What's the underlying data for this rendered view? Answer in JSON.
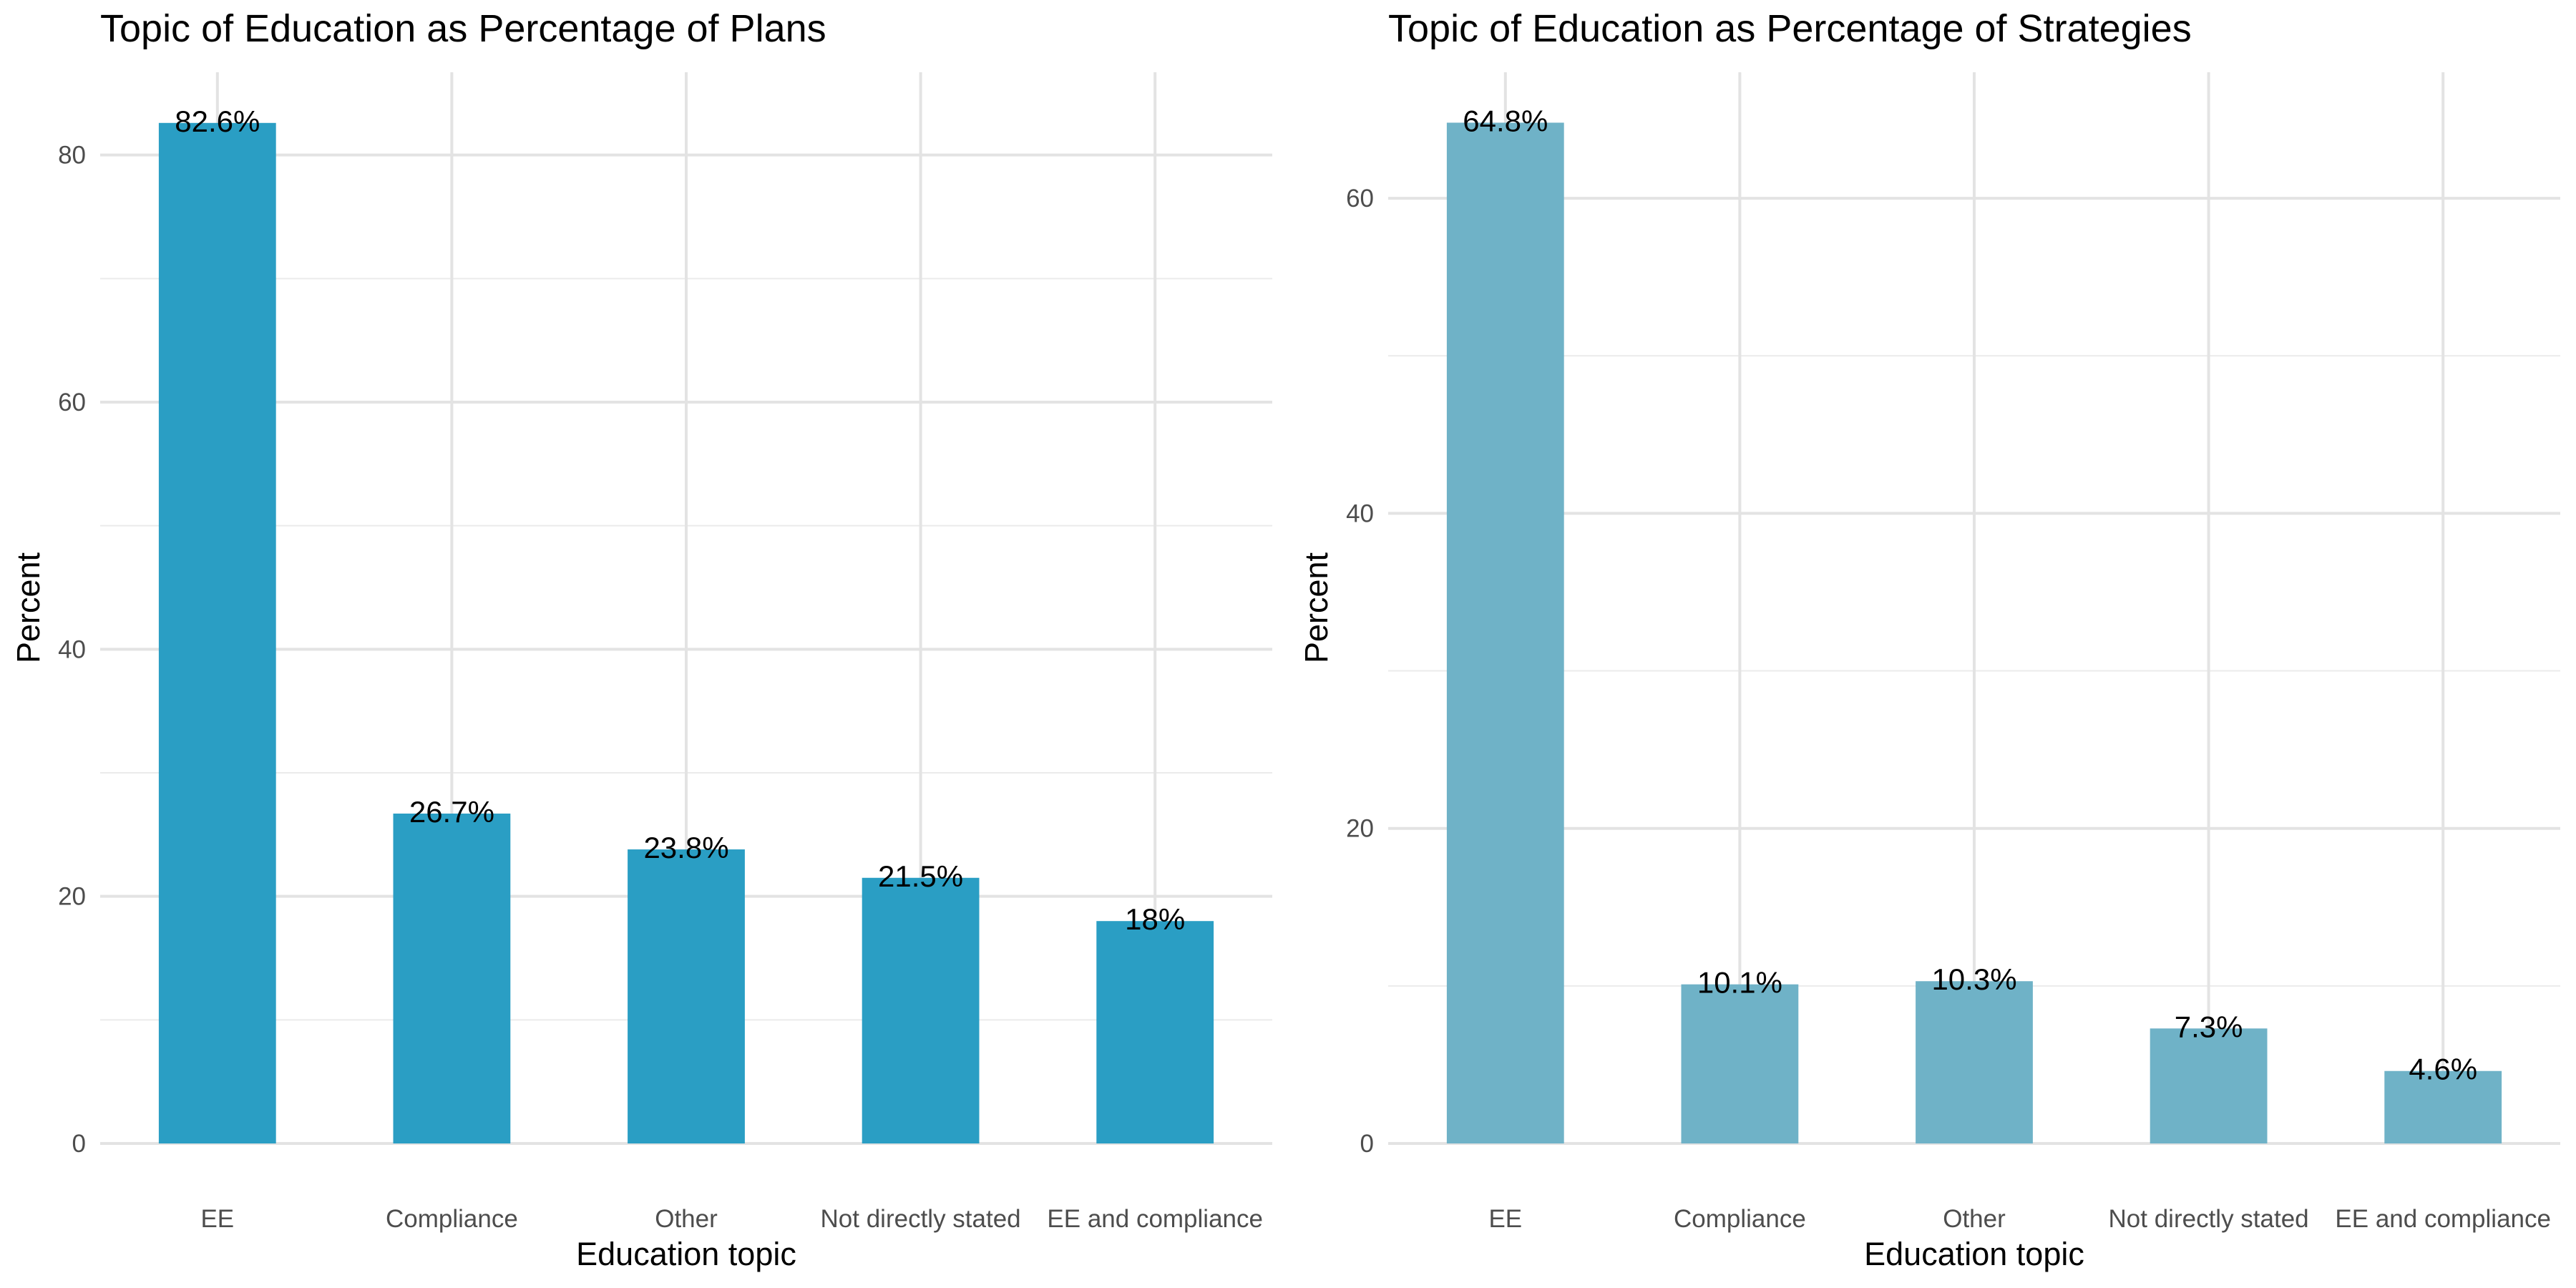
{
  "chart_data": [
    {
      "type": "bar",
      "title": "Topic of Education as Percentage of Plans",
      "xlabel": "Education topic",
      "ylabel": "Percent",
      "categories": [
        "EE",
        "Compliance",
        "Other",
        "Not directly stated",
        "EE and compliance"
      ],
      "values": [
        82.6,
        26.7,
        23.8,
        21.5,
        18
      ],
      "data_labels": [
        "82.6%",
        "26.7%",
        "23.8%",
        "21.5%",
        "18%"
      ],
      "y_ticks": [
        0,
        20,
        40,
        60,
        80
      ],
      "ylim": [
        0,
        86.7
      ],
      "grid": true,
      "bar_color": "#2a9ec4"
    },
    {
      "type": "bar",
      "title": "Topic of Education as Percentage of Strategies",
      "xlabel": "Education topic",
      "ylabel": "Percent",
      "categories": [
        "EE",
        "Compliance",
        "Other",
        "Not directly stated",
        "EE and compliance"
      ],
      "values": [
        64.8,
        10.1,
        10.3,
        7.3,
        4.6
      ],
      "data_labels": [
        "64.8%",
        "10.1%",
        "10.3%",
        "7.3%",
        "4.6%"
      ],
      "y_ticks": [
        0,
        20,
        40,
        60
      ],
      "ylim": [
        0,
        68.0
      ],
      "grid": true,
      "bar_color": "#6fb2c7"
    }
  ]
}
